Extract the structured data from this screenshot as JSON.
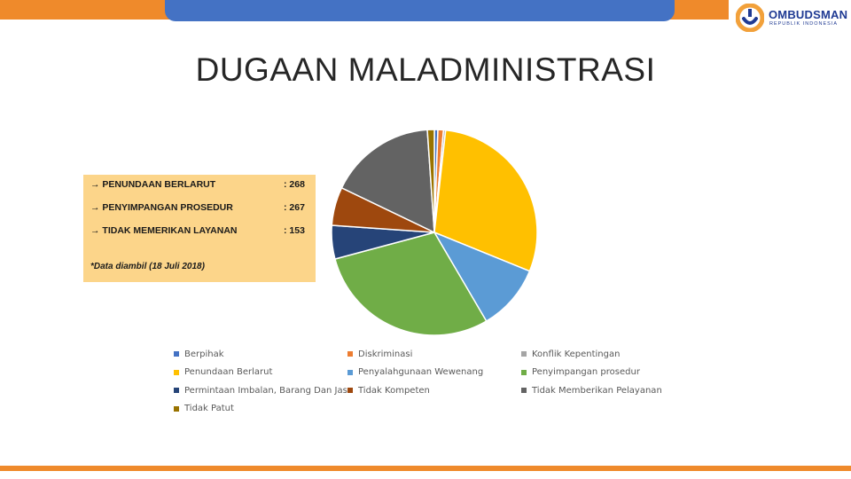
{
  "header": {
    "logo_name": "OMBUDSMAN",
    "logo_sub": "REPUBLIK INDONESIA",
    "accent_color": "#ef8a2b",
    "bar_color": "#4472c4"
  },
  "slide": {
    "title": "DUGAAN MALADMINISTRASI"
  },
  "info_box": {
    "rows": [
      {
        "label": "→ PENUNDAAN BERLARUT",
        "value": ": 268"
      },
      {
        "label": "→ PENYIMPANGAN PROSEDUR",
        "value": ": 267"
      },
      {
        "label": "→ TIDAK MEMERIKAN LAYANAN",
        "value": ": 153"
      }
    ],
    "note": "*Data diambil (18 Juli 2018)",
    "background": "#fcd58a"
  },
  "chart_data": {
    "type": "pie",
    "title": "",
    "categories": [
      "Berpihak",
      "Diskriminasi",
      "Konflik Kepentingan",
      "Penundaan Berlarut",
      "Penyalahgunaan Wewenang",
      "Penyimpangan prosedur",
      "Permintaan Imbalan, Barang Dan Jasa",
      "Tidak Kompeten",
      "Tidak Memberikan Pelayanan",
      "Tidak Patut"
    ],
    "values": [
      5,
      8,
      3,
      268,
      95,
      267,
      48,
      55,
      153,
      10
    ],
    "colors": [
      "#4472c4",
      "#ed7d31",
      "#a5a5a5",
      "#ffc000",
      "#5b9bd5",
      "#70ad47",
      "#264478",
      "#9e480e",
      "#636363",
      "#997300"
    ],
    "start_angle_deg": 0,
    "legend_position": "bottom"
  }
}
